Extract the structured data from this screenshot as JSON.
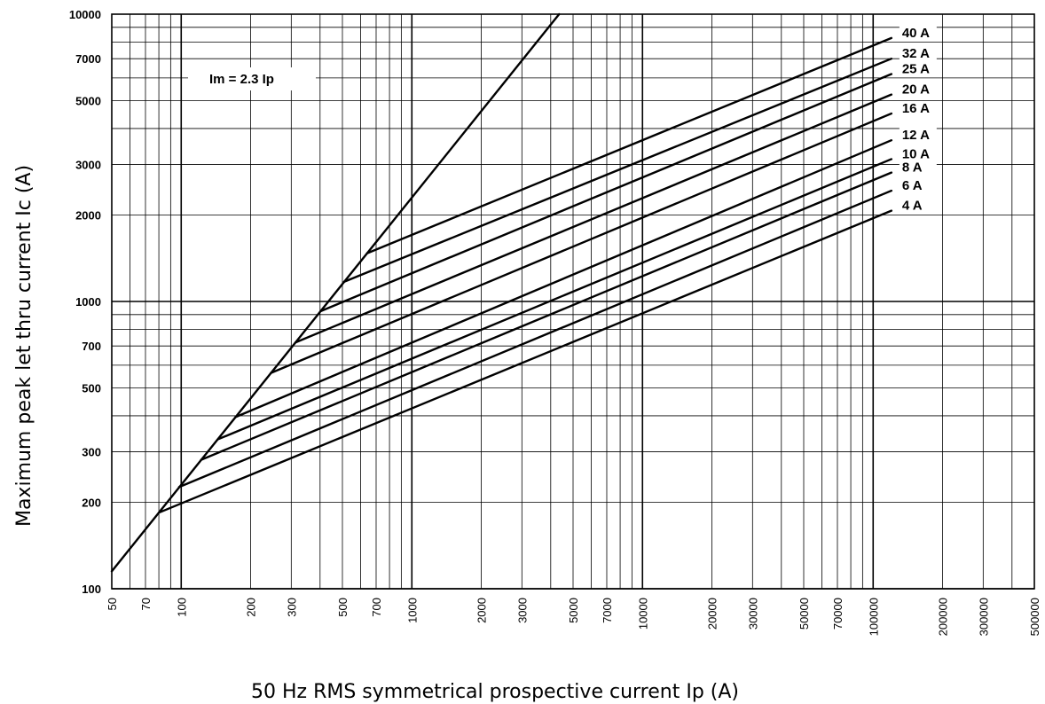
{
  "chart_data": {
    "type": "line",
    "title": "",
    "xlabel": "50 Hz RMS symmetrical prospective current Ip (A)",
    "ylabel": "Maximum peak let thru current Ic (A)",
    "xscale": "log",
    "yscale": "log",
    "xlim": [
      50,
      500000
    ],
    "ylim": [
      100,
      10000
    ],
    "grid": true,
    "legend": "right",
    "x_ticks": [
      "50",
      "70",
      "100",
      "200",
      "300",
      "500",
      "700",
      "1000",
      "2000",
      "3000",
      "5000",
      "7000",
      "10000",
      "20000",
      "30000",
      "50000",
      "70000",
      "100000",
      "200000",
      "300000",
      "500000"
    ],
    "y_ticks": [
      "100",
      "200",
      "300",
      "500",
      "700",
      "1000",
      "2000",
      "3000",
      "5000",
      "7000",
      "10000"
    ],
    "annotation": "Im = 2.3 Ip",
    "limit_line": {
      "x": [
        50,
        4350
      ],
      "y": [
        115,
        10000
      ]
    },
    "series": [
      {
        "name": "4 A",
        "x": [
          80,
          120000
        ],
        "y": [
          184,
          2070
        ]
      },
      {
        "name": "6 A",
        "x": [
          98,
          120000
        ],
        "y": [
          226,
          2430
        ]
      },
      {
        "name": "8 A",
        "x": [
          122,
          120000
        ],
        "y": [
          281,
          2810
        ]
      },
      {
        "name": "10 A",
        "x": [
          144,
          120000
        ],
        "y": [
          331,
          3130
        ]
      },
      {
        "name": "12 A",
        "x": [
          172,
          120000
        ],
        "y": [
          396,
          3640
        ]
      },
      {
        "name": "16 A",
        "x": [
          245,
          120000
        ],
        "y": [
          564,
          4510
        ]
      },
      {
        "name": "20 A",
        "x": [
          313,
          120000
        ],
        "y": [
          720,
          5250
        ]
      },
      {
        "name": "25 A",
        "x": [
          402,
          120000
        ],
        "y": [
          925,
          6190
        ]
      },
      {
        "name": "32 A",
        "x": [
          508,
          120000
        ],
        "y": [
          1170,
          7000
        ]
      },
      {
        "name": "40 A",
        "x": [
          640,
          120000
        ],
        "y": [
          1472,
          8260
        ]
      }
    ]
  }
}
